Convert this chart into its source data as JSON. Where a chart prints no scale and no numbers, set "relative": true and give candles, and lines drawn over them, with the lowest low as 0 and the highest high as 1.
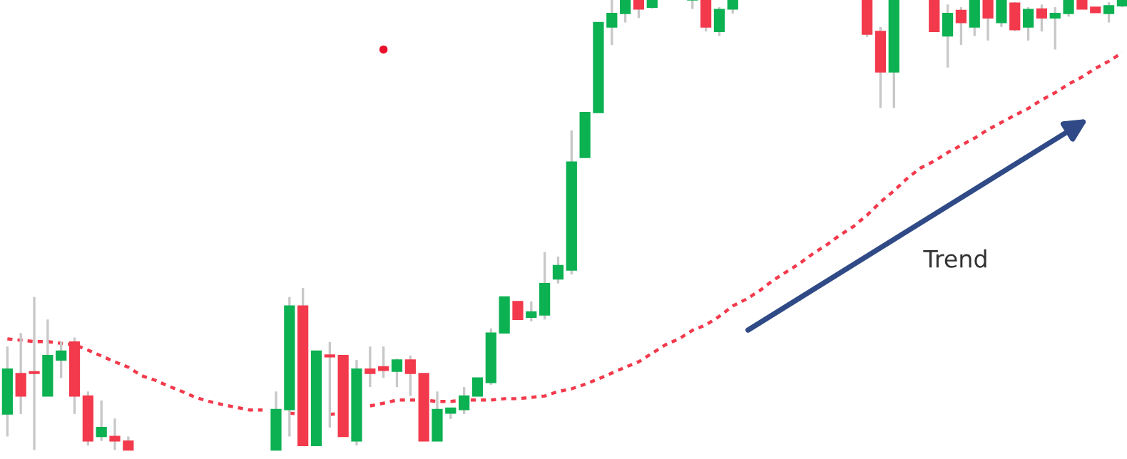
{
  "chart_data": {
    "type": "candlestick",
    "relative": true,
    "legend": false,
    "categories": [
      null,
      null,
      null,
      null,
      null,
      null,
      null,
      null,
      null,
      null,
      null,
      null,
      null,
      null,
      null,
      null,
      null,
      null,
      null,
      null,
      null,
      null,
      null,
      null,
      null,
      null,
      null,
      null,
      null,
      null,
      null,
      null,
      null,
      null,
      null,
      null,
      null,
      null,
      null,
      null,
      null,
      null,
      null,
      null,
      null,
      null,
      null,
      null,
      null,
      null,
      null,
      null,
      null,
      null,
      null,
      null,
      null,
      null,
      null,
      null,
      null,
      null,
      null,
      null,
      null,
      null,
      null,
      null,
      null,
      null,
      null,
      null,
      null,
      null,
      null,
      null,
      null,
      null,
      null,
      null,
      null,
      null,
      null,
      null
    ],
    "ohlc": [
      [
        0.08,
        0.23,
        0.03,
        0.18
      ],
      [
        0.17,
        0.26,
        0.08,
        0.12
      ],
      [
        0.17,
        0.34,
        0.0,
        0.17
      ],
      [
        0.12,
        0.29,
        0.12,
        0.21
      ],
      [
        0.2,
        0.24,
        0.16,
        0.22
      ],
      [
        0.24,
        0.25,
        0.08,
        0.12
      ],
      [
        0.12,
        0.13,
        0.01,
        0.02
      ],
      [
        0.03,
        0.11,
        0.02,
        0.05
      ],
      [
        0.03,
        0.07,
        0.0,
        0.02
      ],
      [
        0.02,
        0.03,
        0.0,
        0.0
      ],
      null,
      null,
      null,
      null,
      null,
      null,
      null,
      null,
      null,
      null,
      [
        0.0,
        0.13,
        0.0,
        0.09
      ],
      [
        0.09,
        0.34,
        0.03,
        0.32
      ],
      [
        0.32,
        0.36,
        0.01,
        0.01
      ],
      [
        0.01,
        0.22,
        0.01,
        0.22
      ],
      [
        0.211,
        0.24,
        0.05,
        0.207
      ],
      [
        0.21,
        0.21,
        0.03,
        0.03
      ],
      [
        0.02,
        0.2,
        0.01,
        0.18
      ],
      [
        0.18,
        0.23,
        0.14,
        0.17
      ],
      [
        0.185,
        0.23,
        0.16,
        0.177
      ],
      [
        0.175,
        0.203,
        0.14,
        0.2
      ],
      [
        0.2,
        0.21,
        0.12,
        0.17
      ],
      [
        0.17,
        0.17,
        0.02,
        0.02
      ],
      [
        0.02,
        0.13,
        0.02,
        0.09
      ],
      [
        0.082,
        0.093,
        0.069,
        0.093
      ],
      [
        0.09,
        0.14,
        0.08,
        0.12
      ],
      [
        0.12,
        0.16,
        0.12,
        0.16
      ],
      [
        0.15,
        0.27,
        0.145,
        0.26
      ],
      [
        0.26,
        0.34,
        0.26,
        0.34
      ],
      [
        0.33,
        0.33,
        0.29,
        0.29
      ],
      [
        0.295,
        0.33,
        0.286,
        0.307
      ],
      [
        0.3,
        0.44,
        0.29,
        0.37
      ],
      [
        0.38,
        0.43,
        0.37,
        0.41
      ],
      [
        0.4,
        0.71,
        0.39,
        0.64
      ],
      [
        0.65,
        0.75,
        0.65,
        0.75
      ],
      [
        0.75,
        0.95,
        0.75,
        0.95
      ],
      [
        0.94,
        1,
        0.9,
        0.97
      ],
      [
        0.97,
        1,
        0.95,
        1
      ],
      [
        1,
        1,
        0.96,
        0.98
      ],
      [
        0.984,
        1,
        0.981,
        1
      ],
      null,
      null,
      [
        1,
        1,
        0.98,
        1
      ],
      [
        1,
        1,
        0.93,
        0.94
      ],
      [
        0.93,
        0.984,
        0.92,
        0.979
      ],
      [
        0.98,
        1,
        0.97,
        1
      ],
      null,
      null,
      null,
      null,
      null,
      null,
      null,
      null,
      null,
      [
        1,
        1,
        0.918,
        0.924
      ],
      [
        0.93,
        0.94,
        0.76,
        0.84
      ],
      [
        0.84,
        1,
        0.76,
        1
      ],
      null,
      null,
      [
        1,
        1,
        0.93,
        0.93
      ],
      [
        0.92,
        0.99,
        0.85,
        0.97
      ],
      [
        0.977,
        0.984,
        0.9,
        0.95
      ],
      [
        0.94,
        1,
        0.92,
        1
      ],
      [
        1,
        1,
        0.91,
        0.96
      ],
      [
        0.95,
        1,
        0.94,
        1
      ],
      [
        0.993,
        0.995,
        0.931,
        0.934
      ],
      [
        0.94,
        0.984,
        0.91,
        0.979
      ],
      [
        0.98,
        0.99,
        0.93,
        0.96
      ],
      [
        0.96,
        0.984,
        0.89,
        0.97
      ],
      [
        0.97,
        1,
        0.963,
        1
      ],
      [
        1,
        1,
        0.98,
        0.98
      ],
      [
        0.984,
        0.984,
        0.972,
        0.972
      ],
      [
        0.97,
        0.995,
        0.95,
        0.987
      ],
      [
        0.987,
        1,
        0.984,
        1
      ]
    ],
    "colors": [
      "#0cb152",
      "#f23a4c",
      "#f23a4c",
      "#0cb152",
      "#0cb152",
      "#f23a4c",
      "#f23a4c",
      "#0cb152",
      "#f23a4c",
      "#f23a4c",
      null,
      null,
      null,
      null,
      null,
      null,
      null,
      null,
      null,
      null,
      "#0cb152",
      "#0cb152",
      "#f23a4c",
      "#0cb152",
      "#f23a4c",
      "#f23a4c",
      "#0cb152",
      "#f23a4c",
      "#f23a4c",
      "#0cb152",
      "#f23a4c",
      "#f23a4c",
      "#0cb152",
      "#0cb152",
      "#0cb152",
      "#0cb152",
      "#0cb152",
      "#0cb152",
      "#f23a4c",
      "#0cb152",
      "#0cb152",
      "#0cb152",
      "#0cb152",
      "#0cb152",
      "#0cb152",
      "#0cb152",
      "#0cb152",
      "#f23a4c",
      "#0cb152",
      null,
      null,
      "#0cb152",
      "#f23a4c",
      "#0cb152",
      "#0cb152",
      null,
      null,
      null,
      null,
      null,
      null,
      null,
      null,
      null,
      "#f23a4c",
      "#f23a4c",
      "#0cb152",
      null,
      null,
      "#f23a4c",
      "#0cb152",
      "#f23a4c",
      "#0cb152",
      "#f23a4c",
      "#0cb152",
      "#f23a4c",
      "#0cb152",
      "#f23a4c",
      "#0cb152",
      "#0cb152",
      "#f23a4c",
      "#f23a4c",
      "#0cb152",
      "#0cb152"
    ],
    "series": [
      {
        "type": "line",
        "color": "#f23a4c",
        "line_style": "dotted",
        "values": [
          0.247,
          0.244,
          0.241,
          0.241,
          0.237,
          0.234,
          0.222,
          0.209,
          0.196,
          0.184,
          0.165,
          0.155,
          0.142,
          0.13,
          0.117,
          0.108,
          0.101,
          0.095,
          0.089,
          0.089,
          null,
          0.082,
          0.079,
          null,
          0.079,
          0.082,
          null,
          0.098,
          0.104,
          0.111,
          0.111,
          0.111,
          0.108,
          0.108,
          0.111,
          0.111,
          0.111,
          0.114,
          0.114,
          0.117,
          0.12,
          0.13,
          0.136,
          0.146,
          0.158,
          0.171,
          0.184,
          0.196,
          0.215,
          0.234,
          0.247,
          0.266,
          0.278,
          0.297,
          0.32,
          0.335,
          0.354,
          0.377,
          0.396,
          0.415,
          0.437,
          0.456,
          0.478,
          0.497,
          0.522,
          0.551,
          0.576,
          0.604,
          0.627,
          0.642,
          0.661,
          0.677,
          0.693,
          0.712,
          0.728,
          0.744,
          0.759,
          0.778,
          0.794,
          0.813,
          0.829,
          0.848,
          0.864,
          0.883
        ]
      },
      {
        "type": "scatter",
        "color": "#e8102a",
        "marker": "circle",
        "values": [
          null,
          null,
          null,
          null,
          null,
          null,
          null,
          null,
          null,
          null,
          null,
          null,
          null,
          null,
          null,
          null,
          null,
          null,
          null,
          null,
          null,
          null,
          null,
          null,
          null,
          null,
          null,
          null,
          0.89,
          null,
          null,
          null,
          null,
          null,
          null,
          null,
          null,
          null,
          null,
          null,
          null,
          null,
          null,
          null,
          null,
          null,
          null,
          null,
          null,
          null,
          null,
          null,
          null,
          null,
          null,
          null,
          null,
          null,
          null,
          null,
          null,
          null,
          null,
          null,
          null,
          null,
          null,
          null,
          null,
          null,
          null,
          null,
          null,
          null,
          null,
          null,
          null,
          null,
          null,
          null,
          null,
          null,
          null,
          null
        ]
      }
    ],
    "annotations": [
      "Trend"
    ]
  }
}
